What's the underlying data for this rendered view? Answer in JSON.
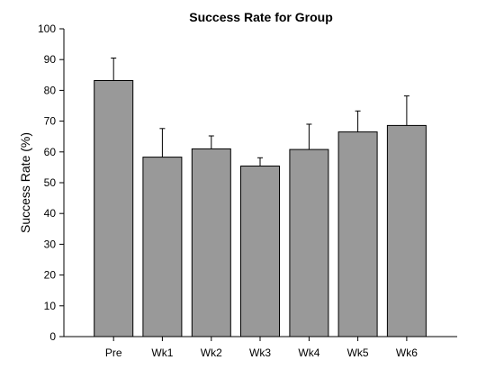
{
  "chart_data": {
    "type": "bar",
    "title": "Success Rate for Group",
    "xlabel": "",
    "ylabel": "Success Rate (%)",
    "categories": [
      "Pre",
      "Wk1",
      "Wk2",
      "Wk3",
      "Wk4",
      "Wk5",
      "Wk6"
    ],
    "values": [
      83.2,
      58.3,
      61.0,
      55.4,
      60.8,
      66.5,
      68.6
    ],
    "error_plus": [
      7.3,
      9.3,
      4.2,
      2.7,
      8.2,
      6.8,
      9.6
    ],
    "ylim": [
      0,
      100
    ],
    "yticks": [
      0,
      10,
      20,
      30,
      40,
      50,
      60,
      70,
      80,
      90,
      100
    ],
    "grid": false,
    "legend": "none",
    "bar_color": "#999999",
    "bar_edge_color": "#000000"
  }
}
